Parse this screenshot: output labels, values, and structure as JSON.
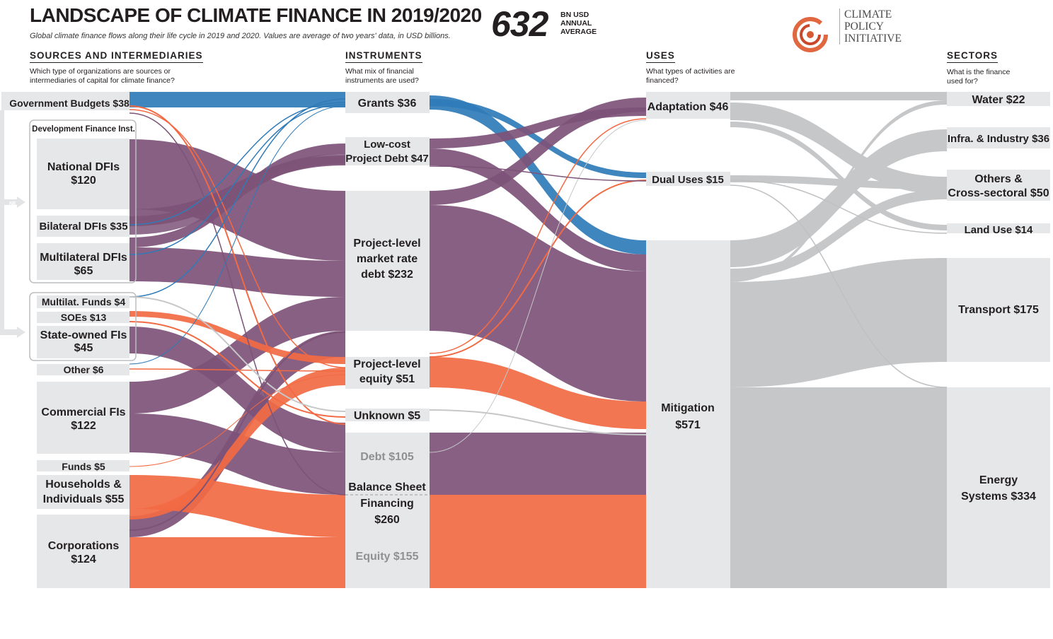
{
  "header": {
    "title": "LANDSCAPE OF CLIMATE FINANCE IN 2019/2020",
    "subtitle": "Global climate finance flows along their life cycle in 2019 and 2020. Values are average of two years' data, in USD billions.",
    "total": "632",
    "total_unit": "BN USD ANNUAL AVERAGE"
  },
  "logo": {
    "text": "CLIMATE POLICY INITIATIVE",
    "icon": "cpi-circle-logo"
  },
  "columns": [
    {
      "title": "SOURCES AND INTERMEDIARIES",
      "question": "Which type of organizations are sources or intermediaries of capital for climate finance?"
    },
    {
      "title": "INSTRUMENTS",
      "question": "What mix of financial instruments are used?"
    },
    {
      "title": "USES",
      "question": "What types of activities are financed?"
    },
    {
      "title": "SECTORS",
      "question": "What is the finance used for?"
    }
  ],
  "group_labels": {
    "dfi_group": "Development Finance Inst.",
    "ne_badge": "NE"
  },
  "colors": {
    "public_blue": "#2f7bb8",
    "public_purple": "#7d5378",
    "private_orange": "#f26a44",
    "sector_grey": "#c6c7c9",
    "node_grey": "#e6e7e8"
  },
  "sources": [
    {
      "id": "gov",
      "label": "Government Budgets $38",
      "value": 38
    },
    {
      "id": "ndfi",
      "label": "National DFIs $120",
      "value": 120
    },
    {
      "id": "bdfi",
      "label": "Bilateral DFIs $35",
      "value": 35
    },
    {
      "id": "mdfi",
      "label": "Multilateral DFIs $65",
      "value": 65
    },
    {
      "id": "mfund",
      "label": "Multilat. Funds $4",
      "value": 4
    },
    {
      "id": "soe",
      "label": "SOEs $13",
      "value": 13
    },
    {
      "id": "sofi",
      "label": "State-owned FIs $45",
      "value": 45
    },
    {
      "id": "other",
      "label": "Other $6",
      "value": 6
    },
    {
      "id": "comm",
      "label": "Commercial FIs $122",
      "value": 122
    },
    {
      "id": "funds",
      "label": "Funds $5",
      "value": 5
    },
    {
      "id": "house",
      "label": "Households & Individuals $55",
      "value": 55
    },
    {
      "id": "corp",
      "label": "Corporations $124",
      "value": 124
    }
  ],
  "instruments": [
    {
      "id": "grants",
      "label": "Grants $36",
      "value": 36
    },
    {
      "id": "lowcost",
      "label": "Low-cost Project Debt $47",
      "value": 47
    },
    {
      "id": "mktdebt",
      "label": "Project-level market rate debt $232",
      "value": 232
    },
    {
      "id": "equity",
      "label": "Project-level equity $51",
      "value": 51
    },
    {
      "id": "unknown",
      "label": "Unknown $5",
      "value": 5
    },
    {
      "id": "bsf",
      "label": "Balance Sheet Financing $260",
      "value": 260,
      "debt_label": "Debt $105",
      "equity_label": "Equity $155"
    }
  ],
  "uses": [
    {
      "id": "adapt",
      "label": "Adaptation $46",
      "value": 46
    },
    {
      "id": "dual",
      "label": "Dual Uses $15",
      "value": 15
    },
    {
      "id": "mitig",
      "label": "Mitigation $571",
      "value": 571
    }
  ],
  "sectors": [
    {
      "id": "water",
      "label": "Water $22",
      "value": 22
    },
    {
      "id": "infra",
      "label": "Infra. & Industry $36",
      "value": 36
    },
    {
      "id": "others",
      "label": "Others & Cross-sectoral $50",
      "value": 50
    },
    {
      "id": "land",
      "label": "Land Use $14",
      "value": 14
    },
    {
      "id": "transport",
      "label": "Transport $175",
      "value": 175
    },
    {
      "id": "energy",
      "label": "Energy Systems $334",
      "value": 334
    }
  ]
}
